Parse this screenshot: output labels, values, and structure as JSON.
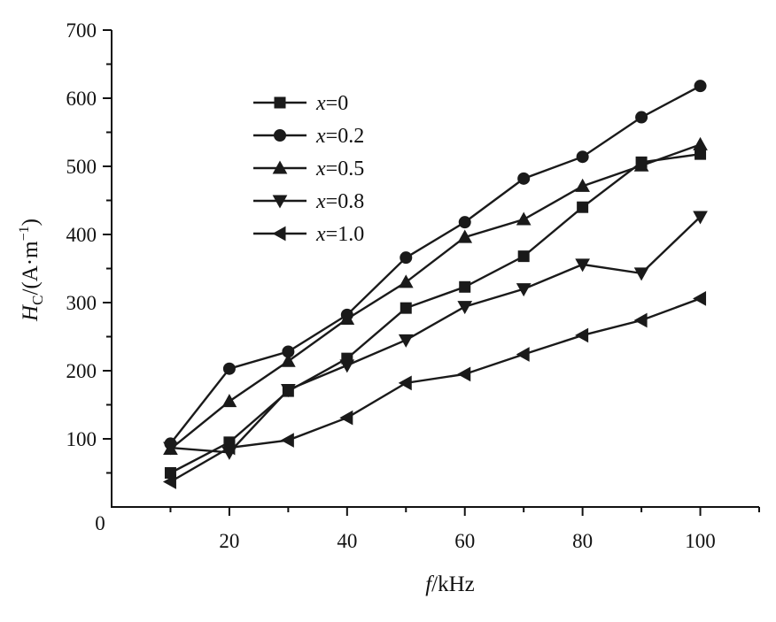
{
  "chart_data": {
    "type": "line",
    "xlabel_var": "f",
    "xlabel_unit": "/kHz",
    "ylabel_var": "H",
    "ylabel_sub": "C",
    "ylabel_unit": "/(A·m",
    "ylabel_exp": "−1",
    "ylabel_close": ")",
    "xlim": [
      0,
      110
    ],
    "ylim": [
      0,
      700
    ],
    "x_ticks": [
      20,
      40,
      60,
      80,
      100
    ],
    "x_tick_labels": [
      "20",
      "40",
      "60",
      "80",
      "100"
    ],
    "y_ticks": [
      100,
      200,
      300,
      400,
      500,
      600,
      700
    ],
    "y_tick_labels": [
      "100",
      "200",
      "300",
      "400",
      "500",
      "600",
      "700"
    ],
    "origin_label": "0",
    "grid": false,
    "legend_position": "upper-left",
    "x": [
      10,
      20,
      30,
      40,
      50,
      60,
      70,
      80,
      90,
      100
    ],
    "series": [
      {
        "var": "x",
        "eq": "=0",
        "marker": "square",
        "values": [
          50,
          95,
          170,
          218,
          292,
          323,
          368,
          440,
          506,
          518
        ]
      },
      {
        "var": "x",
        "eq": "=0.2",
        "marker": "circle",
        "values": [
          93,
          203,
          228,
          282,
          366,
          418,
          482,
          514,
          572,
          618
        ]
      },
      {
        "var": "x",
        "eq": "=0.5",
        "marker": "triangle-up",
        "values": [
          85,
          155,
          214,
          276,
          330,
          396,
          422,
          471,
          501,
          532
        ]
      },
      {
        "var": "x",
        "eq": "=0.8",
        "marker": "triangle-down",
        "values": [
          87,
          80,
          172,
          208,
          245,
          294,
          320,
          356,
          343,
          426
        ]
      },
      {
        "var": "x",
        "eq": "=1.0",
        "marker": "triangle-left",
        "values": [
          37,
          87,
          98,
          131,
          182,
          195,
          224,
          252,
          274,
          306
        ]
      }
    ]
  }
}
